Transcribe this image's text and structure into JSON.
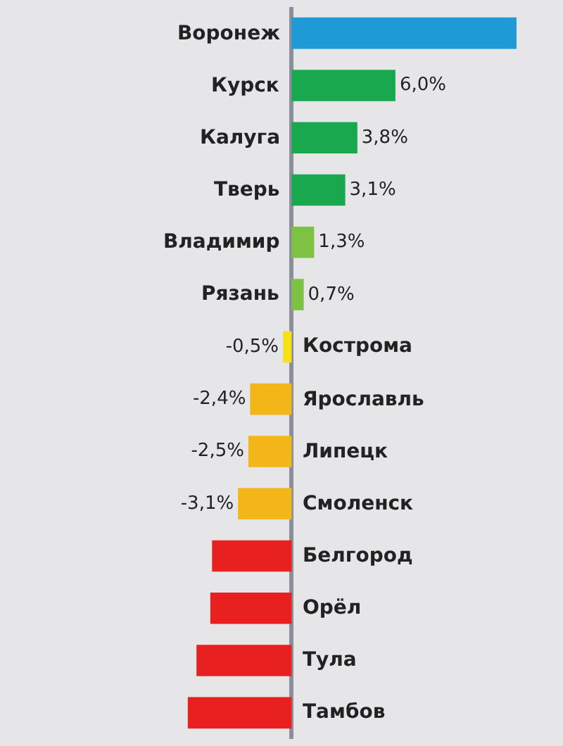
{
  "chart_data": {
    "type": "bar",
    "orientation": "horizontal",
    "categories": [
      "Воронеж",
      "Курск",
      "Калуга",
      "Тверь",
      "Владимир",
      "Рязань",
      "Кострома",
      "Ярославль",
      "Липецк",
      "Смоленск",
      "Белгород",
      "Орёл",
      "Тула",
      "Тамбов"
    ],
    "values": [
      13,
      6.0,
      3.8,
      3.1,
      1.3,
      0.7,
      -0.5,
      -2.4,
      -2.5,
      -3.1,
      -4.6,
      -4.7,
      -5.5,
      -6.0
    ],
    "colors": [
      "#1e9ad6",
      "#1aa84f",
      "#1aa84f",
      "#1aa84f",
      "#7dc242",
      "#7dc242",
      "#f5e11a",
      "#f2b619",
      "#f2b619",
      "#f2b619",
      "#e8201f",
      "#e8201f",
      "#e8201f",
      "#e8201f"
    ],
    "value_labels": [
      null,
      "6,0%",
      "3,8%",
      "3,1%",
      "1,3%",
      "0,7%",
      "-0,5%",
      "-2,4%",
      "-2,5%",
      "-3,1%",
      null,
      null,
      null,
      null
    ]
  }
}
